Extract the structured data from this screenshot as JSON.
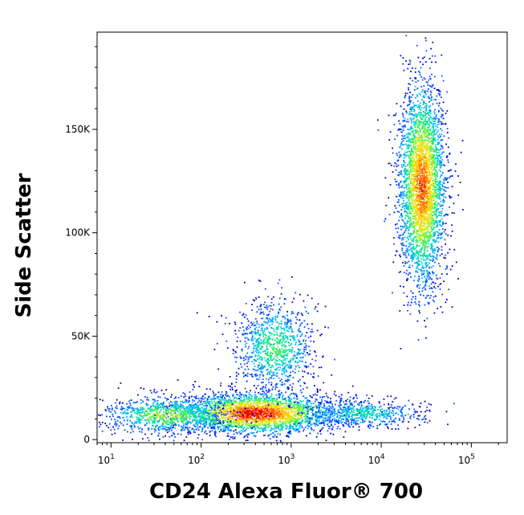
{
  "chart_data": {
    "type": "scatter",
    "title": "",
    "xlabel": "CD24 Alexa Fluor® 700",
    "ylabel": "Side Scatter",
    "x_scale": "log",
    "y_scale": "linear",
    "xlim": [
      7,
      250000
    ],
    "ylim": [
      -1500,
      197000
    ],
    "grid": false,
    "legend": "none",
    "x_ticks": [
      {
        "value": 10,
        "base": "10",
        "exp": "1"
      },
      {
        "value": 100,
        "base": "10",
        "exp": "2"
      },
      {
        "value": 1000,
        "base": "10",
        "exp": "3"
      },
      {
        "value": 10000,
        "base": "10",
        "exp": "4"
      },
      {
        "value": 100000,
        "base": "10",
        "exp": "5"
      }
    ],
    "y_ticks": [
      {
        "value": 0,
        "label": "0"
      },
      {
        "value": 50000,
        "label": "50K"
      },
      {
        "value": 100000,
        "label": "100K"
      },
      {
        "value": 150000,
        "label": "150K"
      }
    ],
    "color_scale": [
      "#0000c8",
      "#0a50ff",
      "#00b4ff",
      "#00e0a0",
      "#50f050",
      "#d0f020",
      "#ffd000",
      "#ff7000",
      "#e80000"
    ],
    "populations": [
      {
        "name": "",
        "x_center": 400,
        "y_center": 13000,
        "x_spread_log": 0.45,
        "y_spread": 5000,
        "events": 2600,
        "peak_density": 1.0
      },
      {
        "name": "",
        "x_center": 40,
        "y_center": 12000,
        "x_spread_log": 0.35,
        "y_spread": 4500,
        "events": 900,
        "peak_density": 0.55
      },
      {
        "name": "",
        "x_center": 650,
        "y_center": 45000,
        "x_spread_log": 0.22,
        "y_spread": 11000,
        "events": 1000,
        "peak_density": 0.45
      },
      {
        "name": "",
        "x_center": 6000,
        "y_center": 13000,
        "x_spread_log": 0.35,
        "y_spread": 3500,
        "events": 600,
        "peak_density": 0.35
      },
      {
        "name": "",
        "x_center": 28000,
        "y_center": 123000,
        "x_spread_log": 0.13,
        "y_spread": 25000,
        "events": 3200,
        "peak_density": 0.9
      }
    ]
  }
}
